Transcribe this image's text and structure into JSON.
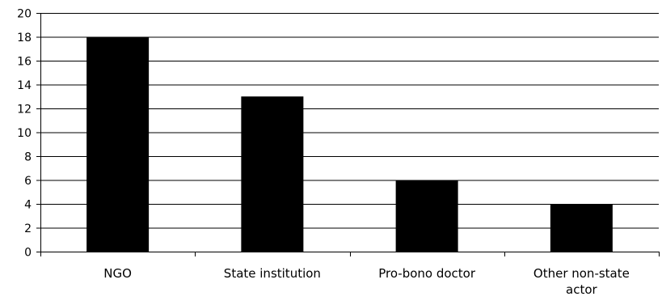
{
  "chart_data": {
    "type": "bar",
    "title": "",
    "xlabel": "",
    "ylabel": "",
    "categories": [
      [
        "NGO"
      ],
      [
        "State institution"
      ],
      [
        "Pro-bono doctor"
      ],
      [
        "Other non-state",
        "actor"
      ]
    ],
    "values": [
      18,
      13,
      6,
      4
    ],
    "ylim": [
      0,
      20
    ],
    "yticks": [
      "0",
      "2",
      "4",
      "6",
      "8",
      "10",
      "12",
      "14",
      "16",
      "18",
      "20"
    ],
    "grid": true,
    "legend": "none",
    "bar_color": "#000000",
    "grid_color": "#000000"
  }
}
